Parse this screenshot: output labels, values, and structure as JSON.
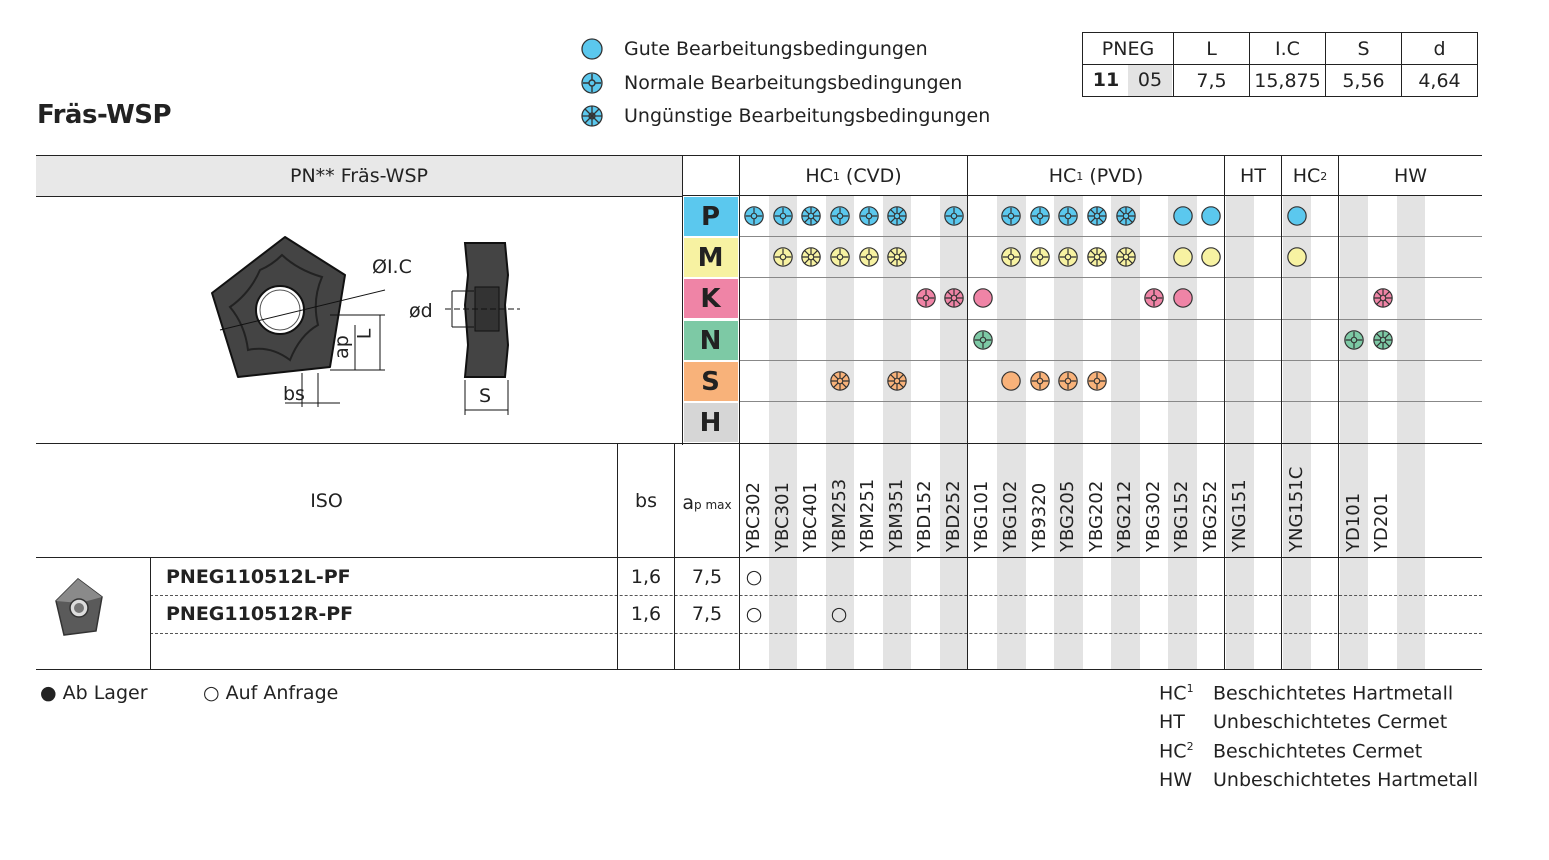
{
  "title": "Fräs-WSP",
  "legend": {
    "good": "Gute Bearbeitungsbedingungen",
    "normal": "Normale Bearbeitungsbedingungen",
    "poor": "Ungünstige Bearbeitungsbedingungen"
  },
  "dimensions": {
    "headers": [
      "PNEG",
      "L",
      "I.C",
      "S",
      "d"
    ],
    "code_bold": "11",
    "code_light": "05",
    "values": [
      "7,5",
      "15,875",
      "5,56",
      "4,64"
    ]
  },
  "table": {
    "product_header": "PN** Fräs-WSP",
    "groups": [
      {
        "main": "HC",
        "sup": "1",
        "rest": " (CVD)"
      },
      {
        "main": "HC",
        "sup": "1",
        "rest": " (PVD)"
      },
      {
        "main": "HT",
        "sup": "",
        "rest": ""
      },
      {
        "main": "HC",
        "sup": "2",
        "rest": ""
      },
      {
        "main": "HW",
        "sup": "",
        "rest": ""
      }
    ],
    "materials": [
      "P",
      "M",
      "K",
      "N",
      "S",
      "H"
    ],
    "material_colors": {
      "P": "#5bc8ee",
      "M": "#f7f2a2",
      "K": "#ef84a6",
      "N": "#7dc9a5",
      "S": "#f8b27a",
      "H": "#d6d6d6"
    },
    "grades": [
      "YBC302",
      "YBC301",
      "YBC401",
      "YBM253",
      "YBM251",
      "YBM351",
      "YBD152",
      "YBD252",
      "YBG101",
      "YBG102",
      "YB9320",
      "YBG205",
      "YBG202",
      "YBG212",
      "YBG302",
      "YBG152",
      "YBG252",
      "YNG151",
      "",
      "YNG151C",
      "",
      "YD101",
      "YD201",
      "",
      ""
    ],
    "iso_header": "ISO",
    "bs_header": "bs",
    "ap_header_main": "a",
    "ap_header_sub": "p max",
    "rows": [
      {
        "iso": "PNEG110512L-PF",
        "bs": "1,6",
        "ap": "7,5",
        "marks": [
          "○"
        ]
      },
      {
        "iso": "PNEG110512R-PF",
        "bs": "1,6",
        "ap": "7,5",
        "marks": [
          "○",
          "○"
        ]
      }
    ]
  },
  "drawing_labels": {
    "ic": "ØI.C",
    "d": "ød",
    "L": "L",
    "ap": "ap",
    "bs": "bs",
    "s": "S"
  },
  "stock_legend": {
    "in_stock": "● Ab Lager",
    "on_request": "○ Auf Anfrage"
  },
  "grade_legend": [
    {
      "code_main": "HC",
      "code_sup": "1",
      "text": "Beschichtetes Hartmetall"
    },
    {
      "code_main": "HT",
      "code_sup": "",
      "text": "Unbeschichtetes Cermet"
    },
    {
      "code_main": "HC",
      "code_sup": "2",
      "text": "Beschichtetes Cermet"
    },
    {
      "code_main": "HW",
      "code_sup": "",
      "text": "Unbeschichtetes Hartmetall"
    }
  ],
  "applicability": {
    "P": [
      [
        "YBC302",
        "normal"
      ],
      [
        "YBC301",
        "normal"
      ],
      [
        "YBC401",
        "poor"
      ],
      [
        "YBM253",
        "normal"
      ],
      [
        "YBM251",
        "normal"
      ],
      [
        "YBM351",
        "poor"
      ],
      [
        "YBD252",
        "normal"
      ],
      [
        "YBG102",
        "normal"
      ],
      [
        "YB9320",
        "normal"
      ],
      [
        "YBG205",
        "normal"
      ],
      [
        "YBG202",
        "poor"
      ],
      [
        "YBG212",
        "poor"
      ],
      [
        "YBG152",
        "good"
      ],
      [
        "YBG252",
        "good"
      ],
      [
        "YNG151C",
        "good"
      ]
    ],
    "M": [
      [
        "YBC301",
        "normal"
      ],
      [
        "YBC401",
        "poor"
      ],
      [
        "YBM253",
        "normal"
      ],
      [
        "YBM251",
        "normal"
      ],
      [
        "YBM351",
        "poor"
      ],
      [
        "YBG102",
        "normal"
      ],
      [
        "YB9320",
        "normal"
      ],
      [
        "YBG205",
        "normal"
      ],
      [
        "YBG202",
        "poor"
      ],
      [
        "YBG212",
        "poor"
      ],
      [
        "YBG152",
        "good"
      ],
      [
        "YBG252",
        "good"
      ],
      [
        "YNG151C",
        "good"
      ]
    ],
    "K": [
      [
        "YBD152",
        "normal"
      ],
      [
        "YBD252",
        "poor"
      ],
      [
        "YBG101",
        "good"
      ],
      [
        "YBG302",
        "normal"
      ],
      [
        "YBG152",
        "good"
      ],
      [
        "YD201",
        "poor"
      ]
    ],
    "N": [
      [
        "YBG101",
        "normal"
      ],
      [
        "YD101",
        "normal"
      ],
      [
        "YD201",
        "poor"
      ]
    ],
    "S": [
      [
        "YBM253",
        "poor"
      ],
      [
        "YBM351",
        "poor"
      ],
      [
        "YBG102",
        "good"
      ],
      [
        "YB9320",
        "normal"
      ],
      [
        "YBG205",
        "normal"
      ],
      [
        "YBG202",
        "normal"
      ]
    ],
    "H": []
  }
}
